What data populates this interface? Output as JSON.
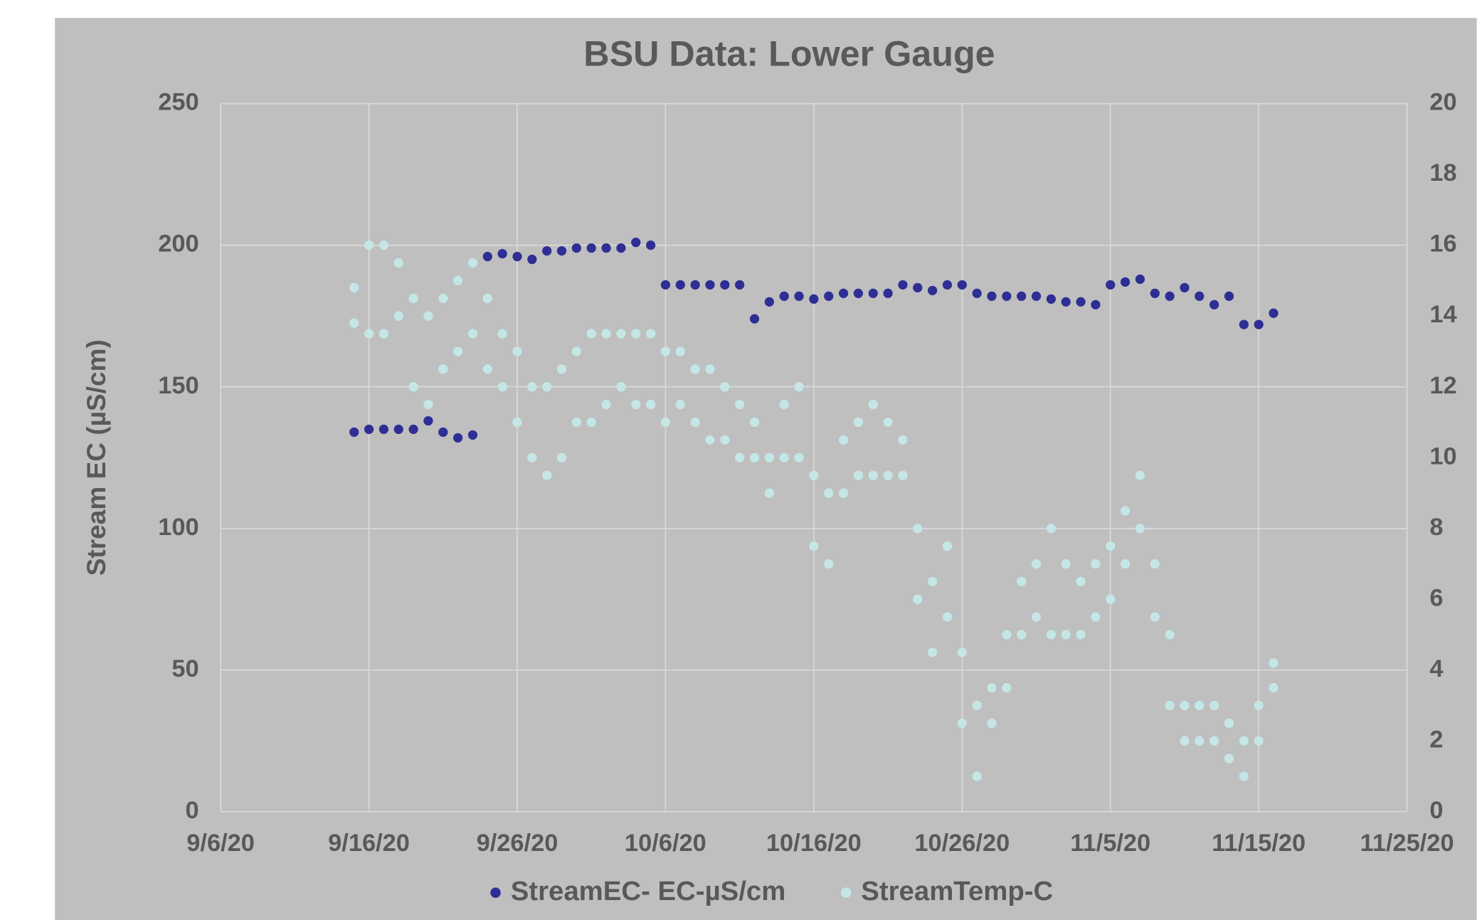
{
  "chart_data": {
    "type": "scatter",
    "title": "BSU Data: Lower Gauge",
    "y_label": "Stream EC (µS/cm)",
    "xlim": [
      "9/6/20",
      "11/25/20"
    ],
    "xticks": [
      "9/6/20",
      "9/16/20",
      "9/26/20",
      "10/6/20",
      "10/16/20",
      "10/26/20",
      "11/5/20",
      "11/15/20",
      "11/25/20"
    ],
    "ylim": [
      0,
      250
    ],
    "yticks": [
      0,
      50,
      100,
      150,
      200,
      250
    ],
    "y2lim": [
      0,
      20
    ],
    "y2ticks": [
      0,
      2,
      4,
      6,
      8,
      10,
      12,
      14,
      16,
      18,
      20
    ],
    "grid": true,
    "legend": "bottom",
    "series": [
      {
        "name": "StreamEC- EC-µS/cm",
        "color": "#2e2e94",
        "x": [
          "9/15/20",
          "9/16/20",
          "9/17/20",
          "9/18/20",
          "9/19/20",
          "9/20/20",
          "9/21/20",
          "9/22/20",
          "9/23/20",
          "9/24/20",
          "9/25/20",
          "9/26/20",
          "9/27/20",
          "9/28/20",
          "9/29/20",
          "9/30/20",
          "10/1/20",
          "10/2/20",
          "10/3/20",
          "10/4/20",
          "10/5/20",
          "10/6/20",
          "10/7/20",
          "10/8/20",
          "10/9/20",
          "10/10/20",
          "10/11/20",
          "10/12/20",
          "10/13/20",
          "10/14/20",
          "10/15/20",
          "10/16/20",
          "10/17/20",
          "10/18/20",
          "10/19/20",
          "10/20/20",
          "10/21/20",
          "10/22/20",
          "10/23/20",
          "10/24/20",
          "10/25/20",
          "10/26/20",
          "10/27/20",
          "10/28/20",
          "10/29/20",
          "10/30/20",
          "10/31/20",
          "11/1/20",
          "11/2/20",
          "11/3/20",
          "11/4/20",
          "11/5/20",
          "11/6/20",
          "11/7/20",
          "11/8/20",
          "11/9/20",
          "11/10/20",
          "11/11/20",
          "11/12/20",
          "11/13/20",
          "11/14/20",
          "11/15/20",
          "11/16/20"
        ],
        "values": [
          134,
          135,
          135,
          135,
          135,
          138,
          134,
          132,
          133,
          196,
          197,
          196,
          195,
          198,
          198,
          199,
          199,
          199,
          199,
          201,
          200,
          186,
          186,
          186,
          186,
          186,
          186,
          174,
          180,
          182,
          182,
          181,
          182,
          183,
          183,
          183,
          183,
          186,
          185,
          184,
          186,
          186,
          183,
          182,
          182,
          182,
          182,
          181,
          180,
          180,
          179,
          186,
          187,
          188,
          183,
          182,
          185,
          182,
          179,
          182,
          172,
          172,
          176
        ]
      },
      {
        "name": "StreamTemp-C",
        "color": "#c5e6e6",
        "axis": "y2",
        "x": [
          "9/15/20",
          "9/15/20",
          "9/16/20",
          "9/16/20",
          "9/17/20",
          "9/17/20",
          "9/18/20",
          "9/18/20",
          "9/19/20",
          "9/19/20",
          "9/20/20",
          "9/20/20",
          "9/21/20",
          "9/21/20",
          "9/22/20",
          "9/22/20",
          "9/23/20",
          "9/23/20",
          "9/24/20",
          "9/24/20",
          "9/25/20",
          "9/25/20",
          "9/26/20",
          "9/26/20",
          "9/27/20",
          "9/27/20",
          "9/28/20",
          "9/28/20",
          "9/29/20",
          "9/29/20",
          "9/30/20",
          "9/30/20",
          "10/1/20",
          "10/1/20",
          "10/2/20",
          "10/2/20",
          "10/3/20",
          "10/3/20",
          "10/4/20",
          "10/4/20",
          "10/5/20",
          "10/5/20",
          "10/6/20",
          "10/6/20",
          "10/7/20",
          "10/7/20",
          "10/8/20",
          "10/8/20",
          "10/9/20",
          "10/9/20",
          "10/10/20",
          "10/10/20",
          "10/11/20",
          "10/11/20",
          "10/12/20",
          "10/12/20",
          "10/13/20",
          "10/13/20",
          "10/14/20",
          "10/14/20",
          "10/15/20",
          "10/15/20",
          "10/16/20",
          "10/16/20",
          "10/17/20",
          "10/17/20",
          "10/18/20",
          "10/18/20",
          "10/19/20",
          "10/19/20",
          "10/20/20",
          "10/20/20",
          "10/21/20",
          "10/21/20",
          "10/22/20",
          "10/22/20",
          "10/23/20",
          "10/23/20",
          "10/24/20",
          "10/24/20",
          "10/25/20",
          "10/25/20",
          "10/26/20",
          "10/26/20",
          "10/27/20",
          "10/27/20",
          "10/28/20",
          "10/28/20",
          "10/29/20",
          "10/29/20",
          "10/30/20",
          "10/30/20",
          "10/31/20",
          "10/31/20",
          "11/1/20",
          "11/1/20",
          "11/2/20",
          "11/2/20",
          "11/3/20",
          "11/3/20",
          "11/4/20",
          "11/4/20",
          "11/5/20",
          "11/5/20",
          "11/6/20",
          "11/6/20",
          "11/7/20",
          "11/7/20",
          "11/8/20",
          "11/8/20",
          "11/9/20",
          "11/9/20",
          "11/10/20",
          "11/10/20",
          "11/11/20",
          "11/11/20",
          "11/12/20",
          "11/12/20",
          "11/13/20",
          "11/13/20",
          "11/14/20",
          "11/14/20",
          "11/15/20",
          "11/15/20",
          "11/16/20",
          "11/16/20"
        ],
        "values": [
          13.8,
          14.8,
          13.5,
          16,
          13.5,
          16,
          14,
          15.5,
          12,
          14.5,
          11.5,
          14,
          12.5,
          14.5,
          13,
          15,
          13.5,
          15.5,
          12.5,
          14.5,
          12,
          13.5,
          11,
          13,
          10,
          12,
          9.5,
          12,
          10,
          12.5,
          11,
          13,
          11,
          13.5,
          11.5,
          13.5,
          12,
          13.5,
          11.5,
          13.5,
          11.5,
          13.5,
          11,
          13,
          11.5,
          13,
          11,
          12.5,
          10.5,
          12.5,
          10.5,
          12,
          10,
          11.5,
          10,
          11,
          9,
          10,
          10,
          11.5,
          10,
          12,
          7.5,
          9.5,
          7,
          9,
          9,
          10.5,
          9.5,
          11,
          9.5,
          11.5,
          9.5,
          11,
          9.5,
          10.5,
          6,
          8,
          4.5,
          6.5,
          5.5,
          7.5,
          2.5,
          4.5,
          1,
          3,
          2.5,
          3.5,
          3.5,
          5,
          5,
          6.5,
          5.5,
          7,
          5,
          8,
          5,
          7,
          5,
          6.5,
          5.5,
          7,
          6,
          7.5,
          7,
          8.5,
          8,
          9.5,
          5.5,
          7,
          3,
          5,
          2,
          3,
          2,
          3,
          2,
          3,
          1.5,
          2.5,
          1,
          2,
          2,
          3,
          3.5,
          4.2
        ]
      }
    ]
  }
}
